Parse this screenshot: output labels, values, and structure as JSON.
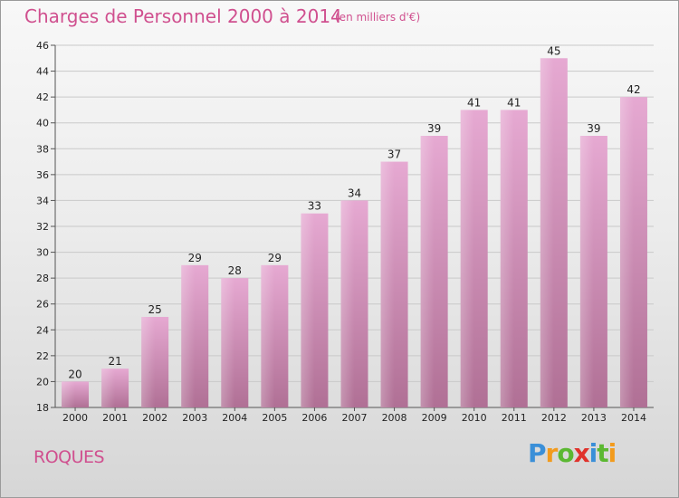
{
  "title": "Charges de Personnel 2000 à 2014",
  "subtitle": "(en milliers d'€)",
  "commune": "ROQUES",
  "logo": {
    "letters": [
      "P",
      "r",
      "o",
      "x",
      "i",
      "t",
      "i"
    ],
    "colors": [
      "#3a8fd8",
      "#f29b1d",
      "#5bb832",
      "#e0322b",
      "#3a8fd8",
      "#5bb832",
      "#f29b1d"
    ]
  },
  "colors": {
    "bar": "#d88fbd",
    "title": "#d0508f"
  },
  "chart_data": {
    "type": "bar",
    "title": "Charges de Personnel 2000 à 2014",
    "subtitle": "(en milliers d'€)",
    "categories": [
      "2000",
      "2001",
      "2002",
      "2003",
      "2004",
      "2005",
      "2006",
      "2007",
      "2008",
      "2009",
      "2010",
      "2011",
      "2012",
      "2013",
      "2014"
    ],
    "values": [
      20,
      21,
      25,
      29,
      28,
      29,
      33,
      34,
      37,
      39,
      41,
      41,
      45,
      39,
      42
    ],
    "ylim": [
      18,
      46
    ],
    "yticks": [
      18,
      20,
      22,
      24,
      26,
      28,
      30,
      32,
      34,
      36,
      38,
      40,
      42,
      44,
      46
    ],
    "grid": true,
    "legend": "none"
  }
}
